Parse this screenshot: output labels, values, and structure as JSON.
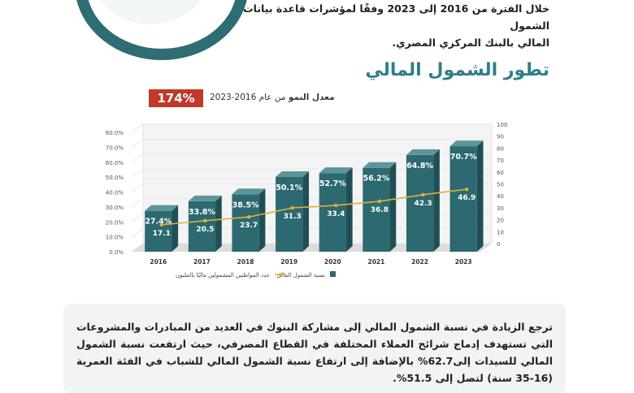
{
  "intro": {
    "line1": "خلال الفترة من 2016 إلى 2023 وفقًا لمؤشرات قاعدة بيانات الشمول",
    "line2": "المالي بالبنك المركزي المصري."
  },
  "section_title": "تطور الشمول المالي",
  "growth": {
    "value": "174%",
    "label_strong": "معدل النمو",
    "label_rest": "من عام 2016-2023"
  },
  "legend": {
    "bar_label": "نسبة الشمول المالي",
    "line_label": "عدد المواطنين المشمولين ماليًا بالمليون"
  },
  "colors": {
    "bar": "#2c6970",
    "bar_top": "#5c969c",
    "line": "#e0b23a",
    "title": "#2e7f88",
    "growth_box": "#c0392b"
  },
  "chart_data": {
    "type": "bar",
    "categories": [
      "2016",
      "2017",
      "2018",
      "2019",
      "2020",
      "2021",
      "2022",
      "2023"
    ],
    "series": [
      {
        "name": "نسبة الشمول المالي",
        "type": "bar",
        "axis": "left",
        "values": [
          27.4,
          33.8,
          38.5,
          50.1,
          52.7,
          56.2,
          64.8,
          70.7
        ],
        "labels": [
          "27.4%",
          "33.8%",
          "38.5%",
          "50.1%",
          "52.7%",
          "56.2%",
          "64.8%",
          "70.7%"
        ]
      },
      {
        "name": "عدد المواطنين المشمولين ماليًا بالمليون",
        "type": "line",
        "axis": "right",
        "values": [
          17.1,
          20.5,
          23.7,
          31.3,
          33.4,
          36.8,
          42.3,
          46.9
        ],
        "labels": [
          "17.1",
          "20.5",
          "23.7",
          "31.3",
          "33.4",
          "36.8",
          "42.3",
          "46.9"
        ]
      }
    ],
    "left_ticks": [
      "0.0%",
      "10.0%",
      "20.0%",
      "30.0%",
      "40.0%",
      "50.0%",
      "60.0%",
      "70.0%",
      "80.0%"
    ],
    "right_ticks": [
      "0",
      "10",
      "20",
      "30",
      "40",
      "50",
      "60",
      "70",
      "80",
      "90",
      "100"
    ],
    "ylim_left": [
      0,
      80
    ],
    "ylim_right": [
      0,
      100
    ],
    "legend_position": "bottom"
  },
  "paragraph": "ترجع الزيادة في نسبة الشمول المالي إلى مشاركة البنوك في العديد من المبادرات والمشروعات التي تستهدف إدماج شرائح العملاء المختلفة في القطاع المصرفي، حيث ارتفعت نسبة الشمول المالي للسيدات إلى62.7% بالإضافة إلى ارتفاع نسبة الشمول المالي للشباب في الفئة العمرية (16-35 سنة) لتصل إلى 51.5%."
}
